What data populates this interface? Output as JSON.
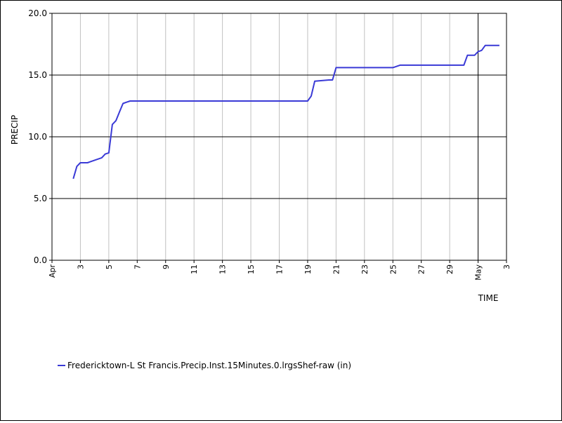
{
  "chart_data": {
    "type": "line",
    "title": "",
    "xlabel": "TIME",
    "ylabel": "PRECIP",
    "ylim": [
      0,
      20
    ],
    "yticks": [
      "0.0",
      "5.0",
      "10.0",
      "15.0",
      "20.0"
    ],
    "x_range": [
      "2024-04-01",
      "2024-05-03"
    ],
    "xticks": [
      {
        "date": "2024-04-01",
        "label": "Apr",
        "style": "month"
      },
      {
        "date": "2024-04-03",
        "label": "3"
      },
      {
        "date": "2024-04-05",
        "label": "5"
      },
      {
        "date": "2024-04-07",
        "label": "7"
      },
      {
        "date": "2024-04-09",
        "label": "9"
      },
      {
        "date": "2024-04-11",
        "label": "11"
      },
      {
        "date": "2024-04-13",
        "label": "13"
      },
      {
        "date": "2024-04-15",
        "label": "15"
      },
      {
        "date": "2024-04-17",
        "label": "17"
      },
      {
        "date": "2024-04-19",
        "label": "19"
      },
      {
        "date": "2024-04-21",
        "label": "21"
      },
      {
        "date": "2024-04-23",
        "label": "23"
      },
      {
        "date": "2024-04-25",
        "label": "25"
      },
      {
        "date": "2024-04-27",
        "label": "27"
      },
      {
        "date": "2024-04-29",
        "label": "29"
      },
      {
        "date": "2024-05-01",
        "label": "May",
        "style": "month"
      },
      {
        "date": "2024-05-03",
        "label": "3"
      }
    ],
    "grid": true,
    "legend_position": "bottom-left",
    "series": [
      {
        "name": "Fredericktown-L St Francis.Precip.Inst.15Minutes.0.lrgsShef-raw (in)",
        "color": "#3a3ad6",
        "x": [
          "2024-04-02T12:00",
          "2024-04-02T18:00",
          "2024-04-03T00:00",
          "2024-04-03T12:00",
          "2024-04-03T18:00",
          "2024-04-04T06:00",
          "2024-04-04T12:00",
          "2024-04-04T18:00",
          "2024-04-05T00:00",
          "2024-04-05T06:00",
          "2024-04-05T12:00",
          "2024-04-05T18:00",
          "2024-04-06T00:00",
          "2024-04-06T06:00",
          "2024-04-06T12:00",
          "2024-04-06T18:00",
          "2024-04-07T00:00",
          "2024-04-18T12:00",
          "2024-04-19T00:00",
          "2024-04-19T06:00",
          "2024-04-19T12:00",
          "2024-04-20T12:00",
          "2024-04-20T18:00",
          "2024-04-21T00:00",
          "2024-04-21T12:00",
          "2024-04-25T00:00",
          "2024-04-25T12:00",
          "2024-04-30T00:00",
          "2024-04-30T06:00",
          "2024-04-30T18:00",
          "2024-05-01T00:00",
          "2024-05-01T06:00",
          "2024-05-01T12:00",
          "2024-05-02T00:00",
          "2024-05-02T12:00"
        ],
        "values": [
          6.6,
          7.6,
          7.9,
          7.9,
          8.0,
          8.2,
          8.3,
          8.6,
          8.7,
          11.0,
          11.3,
          12.0,
          12.7,
          12.8,
          12.9,
          12.9,
          12.9,
          12.9,
          12.9,
          13.3,
          14.5,
          14.6,
          14.6,
          15.6,
          15.6,
          15.6,
          15.8,
          15.8,
          16.6,
          16.6,
          16.9,
          17.0,
          17.4,
          17.4,
          17.4
        ]
      }
    ]
  }
}
